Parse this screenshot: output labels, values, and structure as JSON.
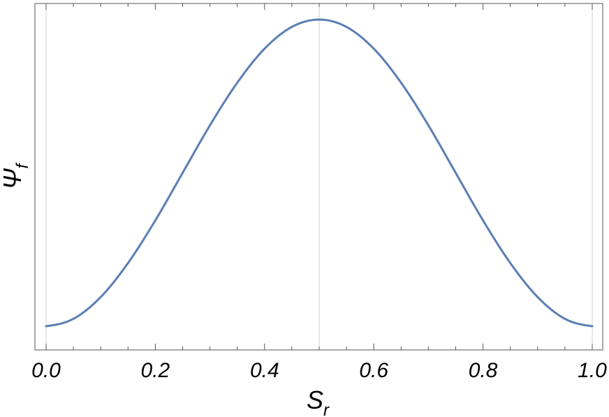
{
  "chart_data": {
    "type": "line",
    "xlabel": "S",
    "xlabel_subscript": "r",
    "ylabel": "Ψ",
    "ylabel_subscript": "f",
    "xlim": [
      0,
      1
    ],
    "ylim": [
      -0.08,
      1.08
    ],
    "x_ticks": [
      0.0,
      0.2,
      0.4,
      0.6,
      0.8,
      1.0
    ],
    "x_tick_labels": [
      "0.0",
      "0.2",
      "0.4",
      "0.6",
      "0.8",
      "1.0"
    ],
    "y_tick_labels": [],
    "vertical_gridlines_at": [
      0.0,
      0.5,
      1.0
    ],
    "grid": false,
    "legend": "none",
    "series": [
      {
        "color": "#5b7db5",
        "x": [
          0.0,
          0.05,
          0.1,
          0.15,
          0.2,
          0.25,
          0.3,
          0.35,
          0.4,
          0.45,
          0.5,
          0.55,
          0.6,
          0.65,
          0.7,
          0.75,
          0.8,
          0.85,
          0.9,
          0.95,
          1.0
        ],
        "y": [
          0.0,
          0.024,
          0.095,
          0.206,
          0.345,
          0.5,
          0.655,
          0.794,
          0.905,
          0.976,
          1.0,
          0.976,
          0.905,
          0.794,
          0.655,
          0.5,
          0.345,
          0.206,
          0.095,
          0.024,
          0.0
        ]
      }
    ]
  }
}
